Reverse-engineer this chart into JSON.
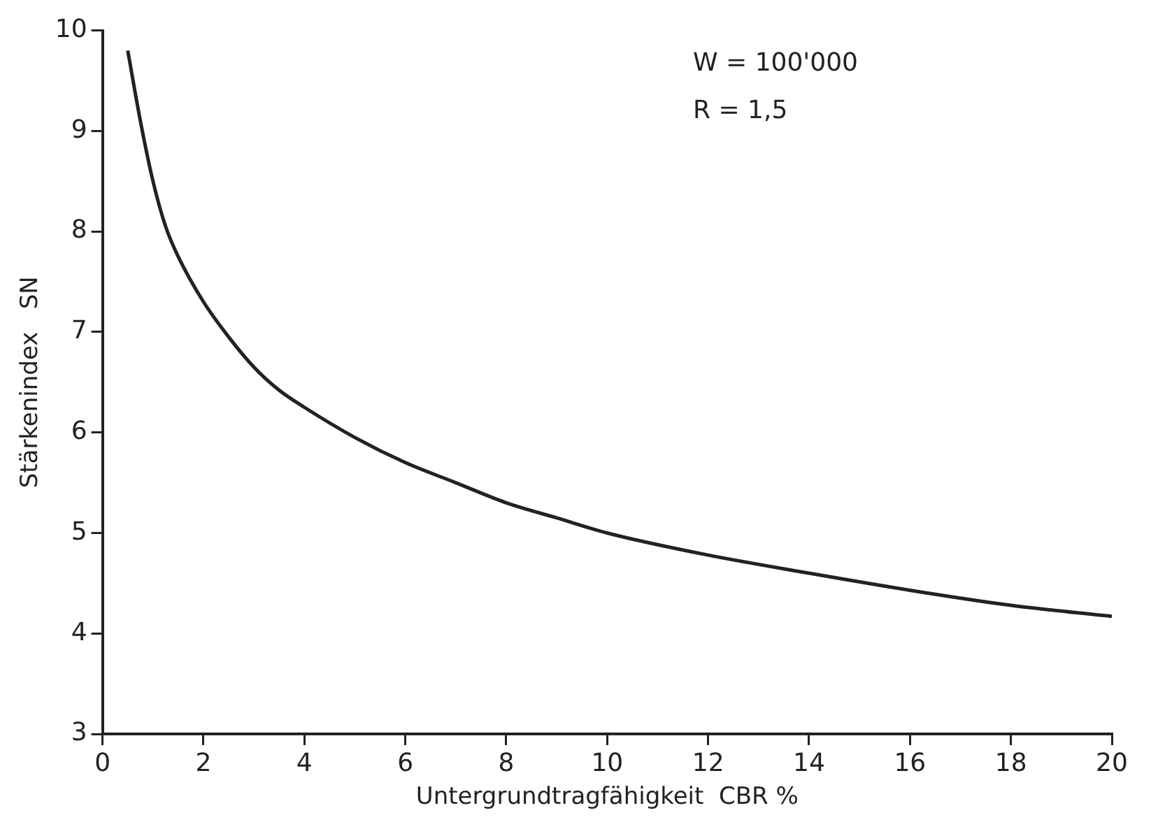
{
  "chart_data": {
    "type": "line",
    "xlabel": "Untergrundtragfähigkeit  CBR %",
    "ylabel": "Stärkenindex   SN",
    "annotations": [
      "W = 100'000",
      "R = 1,5"
    ],
    "x": [
      0.5,
      0.75,
      1,
      1.25,
      1.5,
      2,
      2.5,
      3,
      3.5,
      4,
      5,
      6,
      7,
      8,
      9,
      10,
      12,
      14,
      16,
      18,
      20
    ],
    "series": [
      {
        "color": "#222222",
        "values": [
          9.8,
          9.1,
          8.5,
          8.05,
          7.75,
          7.3,
          6.95,
          6.65,
          6.42,
          6.25,
          5.95,
          5.7,
          5.5,
          5.3,
          5.15,
          5.0,
          4.78,
          4.6,
          4.43,
          4.28,
          4.17
        ]
      }
    ],
    "xlim": [
      0,
      20
    ],
    "xticks": [
      0,
      2,
      4,
      6,
      8,
      10,
      12,
      14,
      16,
      18,
      20
    ],
    "ylim": [
      3,
      10
    ],
    "yticks": [
      3,
      4,
      5,
      6,
      7,
      8,
      9,
      10
    ],
    "grid": false,
    "legend": false,
    "marker": "none",
    "line_style": "solid"
  }
}
